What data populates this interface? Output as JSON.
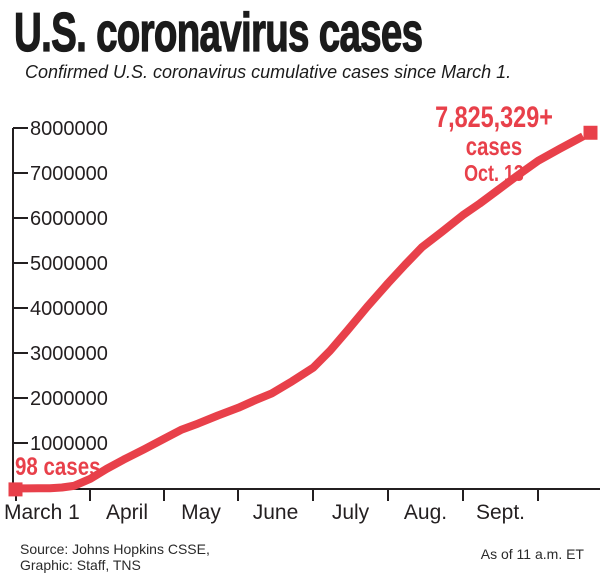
{
  "header": {
    "title": "U.S. coronavirus cases",
    "subtitle": "Confirmed U.S. coronavirus cumulative cases since March 1."
  },
  "chart_data": {
    "type": "line",
    "series_name": "Cumulative confirmed U.S. coronavirus cases",
    "ylim": [
      0,
      8000000
    ],
    "grid": false,
    "y_ticks": [
      8000000,
      7000000,
      6000000,
      5000000,
      4000000,
      3000000,
      2000000,
      1000000
    ],
    "x_month_labels": [
      "March 1",
      "April",
      "May",
      "June",
      "July",
      "Aug.",
      "Sept."
    ],
    "points": [
      {
        "date": "March 1",
        "f": 0.0,
        "cases": 98
      },
      {
        "date": "March 6",
        "f": 0.019,
        "cases": 500
      },
      {
        "date": "March 10",
        "f": 0.039,
        "cases": 1300
      },
      {
        "date": "March 15",
        "f": 0.06,
        "cases": 4600
      },
      {
        "date": "March 20",
        "f": 0.081,
        "cases": 19600
      },
      {
        "date": "March 25",
        "f": 0.102,
        "cases": 55000
      },
      {
        "date": "April 1",
        "f": 0.131,
        "cases": 213000
      },
      {
        "date": "April 8",
        "f": 0.16,
        "cases": 435000
      },
      {
        "date": "April 15",
        "f": 0.19,
        "cases": 640000
      },
      {
        "date": "April 23",
        "f": 0.226,
        "cases": 870000
      },
      {
        "date": "May 1",
        "f": 0.261,
        "cases": 1103000
      },
      {
        "date": "May 8",
        "f": 0.291,
        "cases": 1300000
      },
      {
        "date": "May 15",
        "f": 0.321,
        "cases": 1440000
      },
      {
        "date": "May 23",
        "f": 0.356,
        "cases": 1620000
      },
      {
        "date": "June 1",
        "f": 0.392,
        "cases": 1790000
      },
      {
        "date": "June 8",
        "f": 0.422,
        "cases": 1960000
      },
      {
        "date": "June 15",
        "f": 0.451,
        "cases": 2110000
      },
      {
        "date": "June 23",
        "f": 0.487,
        "cases": 2380000
      },
      {
        "date": "July 1",
        "f": 0.524,
        "cases": 2680000
      },
      {
        "date": "July 8",
        "f": 0.554,
        "cases": 3060000
      },
      {
        "date": "July 15",
        "f": 0.584,
        "cases": 3500000
      },
      {
        "date": "July 23",
        "f": 0.619,
        "cases": 4030000
      },
      {
        "date": "Aug. 1",
        "f": 0.656,
        "cases": 4560000
      },
      {
        "date": "Aug. 8",
        "f": 0.686,
        "cases": 4970000
      },
      {
        "date": "Aug. 15",
        "f": 0.716,
        "cases": 5360000
      },
      {
        "date": "Aug. 23",
        "f": 0.751,
        "cases": 5700000
      },
      {
        "date": "Sept. 1",
        "f": 0.788,
        "cases": 6070000
      },
      {
        "date": "Sept. 8",
        "f": 0.818,
        "cases": 6330000
      },
      {
        "date": "Sept. 15",
        "f": 0.848,
        "cases": 6610000
      },
      {
        "date": "Sept. 23",
        "f": 0.883,
        "cases": 6940000
      },
      {
        "date": "Oct. 1",
        "f": 0.921,
        "cases": 7280000
      },
      {
        "date": "Oct. 7",
        "f": 0.959,
        "cases": 7550000
      },
      {
        "date": "Oct. 13",
        "f": 1.0,
        "cases": 7825329
      }
    ],
    "annotations": {
      "peak_line1": "7,825,329+",
      "peak_line2": "cases",
      "peak_line3": "Oct. 13",
      "start_label": "98 cases"
    }
  },
  "footer": {
    "source_line1": "Source: Johns Hopkins CSSE,",
    "source_line2": "Graphic: Staff, TNS",
    "as_of": "As of 11 a.m. ET"
  },
  "colors": {
    "accent_red": "#e8404a",
    "ink": "#231f20"
  }
}
